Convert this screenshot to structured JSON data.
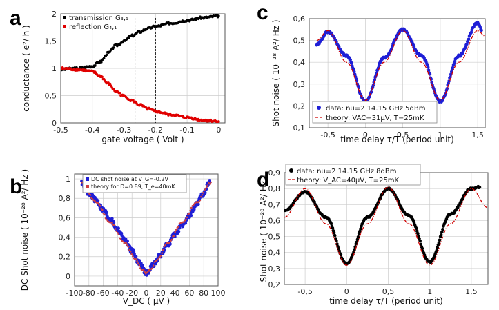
{
  "panels": {
    "a": {
      "letter": "a"
    },
    "b": {
      "letter": "b"
    },
    "c": {
      "letter": "c"
    },
    "d": {
      "letter": "d"
    }
  },
  "chart_data": [
    {
      "id": "a",
      "type": "scatter",
      "xlabel": "gate voltage ( Volt )",
      "ylabel": "conductance ( e²/ h )",
      "xlim": [
        -0.5,
        0.02
      ],
      "ylim": [
        0,
        2
      ],
      "xticks": [
        -0.5,
        -0.4,
        -0.3,
        -0.2,
        -0.1,
        0
      ],
      "xtick_labels": [
        "-0,5",
        "-0,4",
        "-0,3",
        "-0,2",
        "-0,1",
        "0"
      ],
      "yticks": [
        0,
        0.5,
        1,
        1.5,
        2
      ],
      "ytick_labels": [
        "0",
        "0,5",
        "1",
        "1,5",
        "2"
      ],
      "grid": true,
      "legend_position": "top-left",
      "vlines": [
        -0.265,
        -0.2
      ],
      "series": [
        {
          "name": "transmission G₃,₁",
          "color": "#000000",
          "x": [
            -0.5,
            -0.45,
            -0.4,
            -0.375,
            -0.35,
            -0.325,
            -0.3,
            -0.275,
            -0.25,
            -0.225,
            -0.2,
            -0.15,
            -0.1,
            -0.05,
            0
          ],
          "y": [
            0.98,
            1.0,
            1.04,
            1.12,
            1.28,
            1.42,
            1.5,
            1.6,
            1.67,
            1.73,
            1.77,
            1.83,
            1.88,
            1.93,
            1.96
          ]
        },
        {
          "name": "reflection G₄,₁",
          "color": "#e00000",
          "x": [
            -0.5,
            -0.45,
            -0.4,
            -0.375,
            -0.35,
            -0.325,
            -0.3,
            -0.275,
            -0.25,
            -0.225,
            -0.2,
            -0.15,
            -0.1,
            -0.05,
            0
          ],
          "y": [
            1.0,
            0.98,
            0.94,
            0.86,
            0.72,
            0.58,
            0.49,
            0.41,
            0.33,
            0.26,
            0.21,
            0.15,
            0.1,
            0.05,
            0.03
          ]
        }
      ]
    },
    {
      "id": "b",
      "type": "scatter",
      "xlabel": "V_DC ( µV )",
      "ylabel": "DC Shot noise ( 10⁻²⁸ A²/ Hz )",
      "xlim": [
        -100,
        100
      ],
      "ylim": [
        -0.1,
        1.05
      ],
      "xticks": [
        -100,
        -80,
        -60,
        -40,
        -20,
        0,
        20,
        40,
        60,
        80,
        100
      ],
      "xtick_labels": [
        "-100",
        "-80",
        "-60",
        "-40",
        "-20",
        "0",
        "20",
        "40",
        "60",
        "80",
        "100"
      ],
      "yticks": [
        0,
        0.2,
        0.4,
        0.6,
        0.8,
        1
      ],
      "ytick_labels": [
        "0",
        "0,2",
        "0,4",
        "0,6",
        "0,8",
        "1"
      ],
      "grid": true,
      "legend_position": "top",
      "series": [
        {
          "name": "DC shot noise at V_G=-0.2V",
          "color": "#1f1fd6",
          "x": [
            -90,
            -80,
            -70,
            -60,
            -50,
            -40,
            -30,
            -20,
            -10,
            0,
            10,
            20,
            30,
            40,
            50,
            60,
            70,
            80,
            88
          ],
          "y": [
            0.96,
            0.85,
            0.78,
            0.68,
            0.58,
            0.48,
            0.37,
            0.26,
            0.14,
            0.03,
            0.12,
            0.22,
            0.33,
            0.43,
            0.52,
            0.62,
            0.74,
            0.85,
            0.98
          ]
        },
        {
          "name": "theory for D=0.89, T_e=40mK",
          "color": "#d04040",
          "x": [
            -90,
            -70,
            -50,
            -30,
            -15,
            -5,
            0,
            5,
            15,
            30,
            50,
            70,
            90
          ],
          "y": [
            0.96,
            0.76,
            0.55,
            0.34,
            0.17,
            0.06,
            0.03,
            0.06,
            0.17,
            0.34,
            0.55,
            0.76,
            0.96
          ]
        }
      ]
    },
    {
      "id": "c",
      "type": "line",
      "xlabel": "time delay τ/T (period unit)",
      "ylabel": "Shot noise ( 10⁻²⁸ A²/ Hz )",
      "xlim": [
        -0.75,
        1.6
      ],
      "ylim": [
        0.1,
        0.6
      ],
      "xticks": [
        -0.5,
        0,
        0.5,
        1,
        1.5
      ],
      "xtick_labels": [
        "-0,5",
        "0",
        "0,5",
        "1",
        "1,5"
      ],
      "yticks": [
        0.1,
        0.2,
        0.3,
        0.4,
        0.5,
        0.6
      ],
      "ytick_labels": [
        "0,1",
        "0,2",
        "0,3",
        "0,4",
        "0,5",
        "0,6"
      ],
      "grid": true,
      "legend_position": "bottom-center",
      "series": [
        {
          "name": "data: nu=2  14.15 GHz  5dBm",
          "color": "#1f1fd6",
          "x": [
            -0.65,
            -0.5,
            -0.25,
            0,
            0.25,
            0.5,
            0.75,
            1,
            1.25,
            1.5,
            1.55
          ],
          "y": [
            0.48,
            0.54,
            0.43,
            0.22,
            0.42,
            0.55,
            0.43,
            0.22,
            0.43,
            0.58,
            0.55
          ]
        },
        {
          "name": "theory: VAC=31µV, T=25mK",
          "color": "#d00000",
          "x": [
            -0.65,
            -0.5,
            -0.25,
            0,
            0.25,
            0.5,
            0.75,
            1,
            1.25,
            1.5,
            1.6
          ],
          "y": [
            0.5,
            0.545,
            0.4,
            0.225,
            0.4,
            0.545,
            0.4,
            0.225,
            0.4,
            0.545,
            0.52
          ]
        }
      ]
    },
    {
      "id": "d",
      "type": "line",
      "xlabel": "time delay τ/T  (period unit)",
      "ylabel": "Shot noise ( 10⁻²⁸ A²/ Hz )",
      "xlim": [
        -0.75,
        1.7
      ],
      "ylim": [
        0.2,
        0.9
      ],
      "xticks": [
        -0.5,
        0,
        0.5,
        1,
        1.5
      ],
      "xtick_labels": [
        "-0,5",
        "0",
        "0,5",
        "1",
        "1,5"
      ],
      "yticks": [
        0.2,
        0.3,
        0.4,
        0.5,
        0.6,
        0.7,
        0.8,
        0.9
      ],
      "ytick_labels": [
        "0,2",
        "0,3",
        "0,4",
        "0,5",
        "0,6",
        "0,7",
        "0,8",
        "0,9"
      ],
      "grid": true,
      "legend_position": "top-left",
      "series": [
        {
          "name": "data: nu=2  14.15 GHz  8dBm",
          "color": "#000000",
          "x": [
            -0.75,
            -0.5,
            -0.25,
            0,
            0.25,
            0.5,
            0.75,
            1,
            1.25,
            1.5,
            1.6
          ],
          "y": [
            0.66,
            0.78,
            0.62,
            0.33,
            0.62,
            0.8,
            0.63,
            0.34,
            0.64,
            0.8,
            0.81
          ]
        },
        {
          "name": "theory: V_AC=40µV, T=25mK",
          "color": "#d00000",
          "x": [
            -0.75,
            -0.5,
            -0.25,
            0,
            0.25,
            0.5,
            0.75,
            1,
            1.25,
            1.5,
            1.7
          ],
          "y": [
            0.62,
            0.8,
            0.58,
            0.32,
            0.58,
            0.81,
            0.58,
            0.32,
            0.58,
            0.8,
            0.68
          ]
        }
      ]
    }
  ]
}
